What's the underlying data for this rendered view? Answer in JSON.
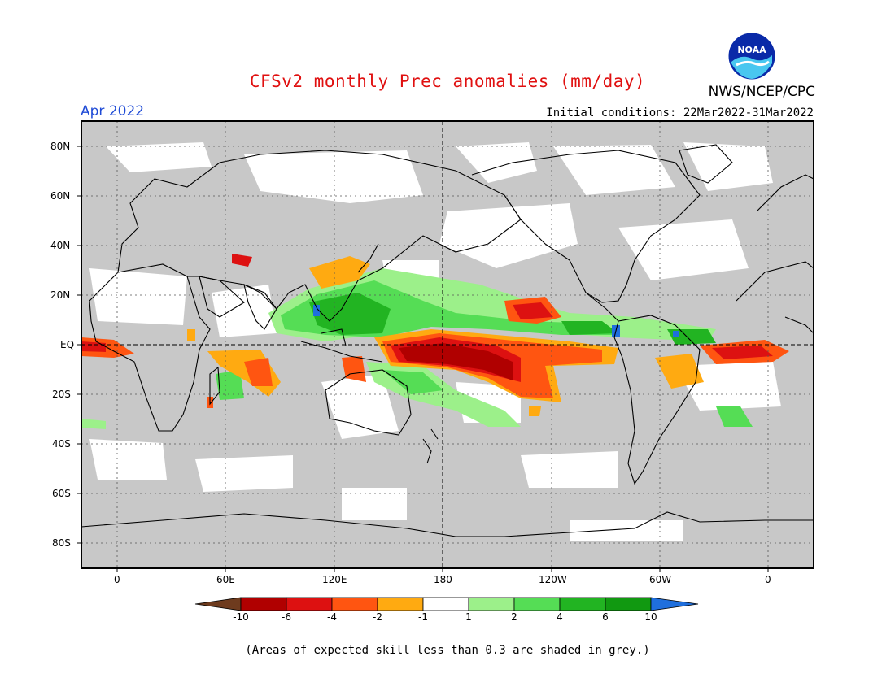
{
  "header": {
    "title": "CFSv2 monthly Prec anomalies (mm/day)",
    "month": "Apr 2022",
    "agency": "NWS/NCEP/CPC",
    "initial_conditions": "Initial conditions: 22Mar2022-31Mar2022",
    "logo_text": "NOAA"
  },
  "map": {
    "lat_labels": [
      "80N",
      "60N",
      "40N",
      "20N",
      "EQ",
      "20S",
      "40S",
      "60S",
      "80S"
    ],
    "lon_labels": [
      "0",
      "60E",
      "120E",
      "180",
      "120W",
      "60W",
      "0"
    ],
    "land_shading": "#c8c8c8",
    "sea_shading": "#ffffff"
  },
  "colorbar": {
    "labels": [
      "-10",
      "-6",
      "-4",
      "-2",
      "-1",
      "1",
      "2",
      "4",
      "6",
      "10"
    ],
    "colors": [
      "#6e3b1e",
      "#b00000",
      "#dd1111",
      "#ff5511",
      "#ffaa11",
      "#ffffff",
      "#9cf08a",
      "#55dd55",
      "#22b422",
      "#119911",
      "#1f6fdd"
    ]
  },
  "footnote": "(Areas of expected skill less than 0.3 are shaded in grey.)"
}
